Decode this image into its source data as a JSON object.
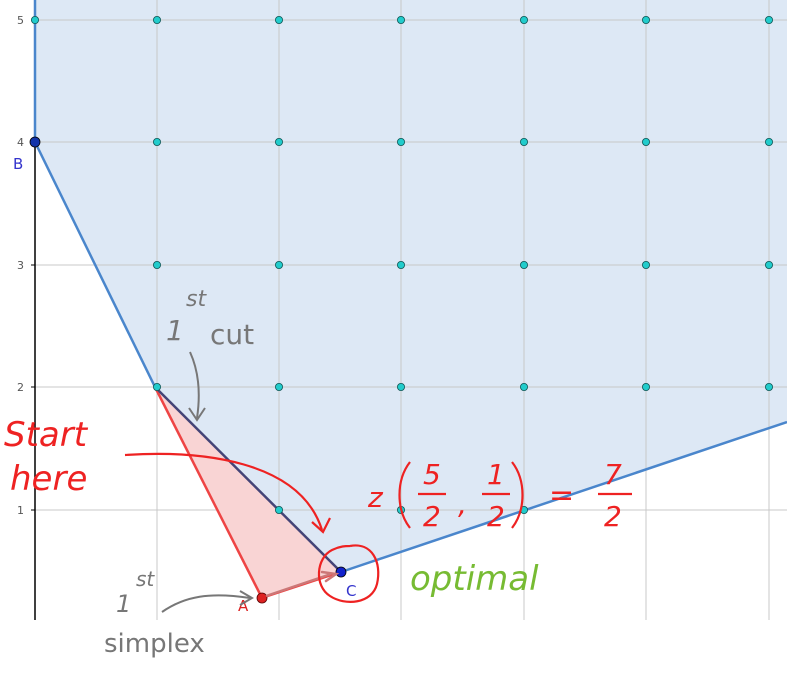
{
  "axes": {
    "y_ticks": [
      "1",
      "2",
      "3",
      "4",
      "5"
    ]
  },
  "points": {
    "A": "A",
    "B": "B",
    "C": "C"
  },
  "annotations": {
    "first_cut_number": "1",
    "first_cut_suffix": "st",
    "first_cut_word": "cut",
    "start_line1": "Start",
    "start_line2": "here",
    "objective_z": "z",
    "frac1_num": "5",
    "frac1_den": "2",
    "comma": ",",
    "frac2_num": "1",
    "frac2_den": "2",
    "equals": "=",
    "result_num": "7",
    "result_den": "2",
    "optimal": "optimal",
    "first_simplex_number": "1",
    "first_simplex_suffix": "st",
    "first_simplex_word": "simplex"
  },
  "colors": {
    "feasible_fill": "#dde8f5",
    "boundary": "#4a86cc",
    "cut_line": "#444477",
    "cut_region": "#f9d4d4",
    "red": "#ee2222",
    "green": "#77bb33",
    "gray_hand": "#777777",
    "grid_point": "#22cccc",
    "point_blue": "#2222cc"
  }
}
